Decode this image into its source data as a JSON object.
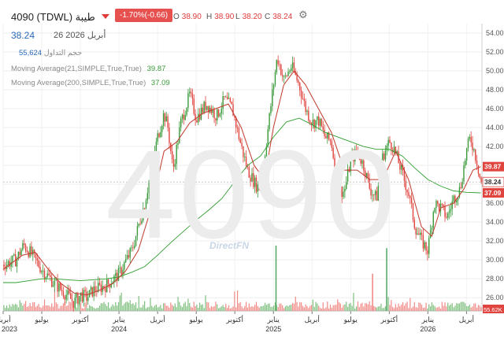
{
  "header": {
    "symbol": "4090",
    "exchange": "(TDWL)",
    "name": "طيبة",
    "change": "-1.70%(-0.66)",
    "open_label": "O",
    "open": "38.90",
    "high_label": "H",
    "high": "38.90",
    "low_label": "L",
    "low": "38.20",
    "close_label": "C",
    "close": "38.24",
    "last_price": "38.24",
    "last_date": "26 أبريل 2026",
    "volume_label": "حجم التداول",
    "volume": "55,624",
    "ma21_label": "Moving Average(21,SIMPLE,True,True)",
    "ma21_value": "39.87",
    "ma200_label": "Moving Average(200,SIMPLE,True,True)",
    "ma200_value": "37.09"
  },
  "watermark": "4090",
  "brand": "DirectFN",
  "colors": {
    "up": "#3a9a3a",
    "down": "#e0443e",
    "ma21": "#c0392b",
    "ma200": "#2e9e2e",
    "price_tag": "#e0443e",
    "ma21_tag": "#e0443e",
    "ma200_tag": "#e0443e",
    "vol_tag": "#e0443e"
  },
  "chart_data": {
    "type": "candlestick",
    "y_axis": {
      "ticks": [
        26,
        28,
        30,
        32,
        34,
        36,
        38,
        40,
        42,
        44,
        46,
        48,
        50,
        52,
        54
      ],
      "ylim": [
        24.6,
        55
      ],
      "side": "right"
    },
    "x_axis": {
      "months": [
        "أبريل",
        "يوليو",
        "أكتوبر",
        "يناير",
        "أبريل",
        "يوليو",
        "أكتوبر",
        "يناير",
        "أبريل",
        "يوليو",
        "أكتوبر",
        "يناير",
        "أبريل"
      ],
      "month_positions": [
        0,
        3,
        6,
        9,
        12,
        15,
        18,
        21,
        24,
        27,
        30,
        33,
        36
      ],
      "years": [
        "2023",
        "2024",
        "2025",
        "2026"
      ],
      "year_positions": [
        0,
        9,
        21,
        33
      ],
      "range_months": [
        0,
        37.2
      ]
    },
    "price_path": [
      [
        0,
        29.5
      ],
      [
        1,
        30.0
      ],
      [
        1.6,
        31.6
      ],
      [
        2.2,
        30.6
      ],
      [
        3,
        29.0
      ],
      [
        4,
        27.5
      ],
      [
        5,
        26.2
      ],
      [
        5.5,
        25.5
      ],
      [
        6,
        26.3
      ],
      [
        6.5,
        26.0
      ],
      [
        7,
        26.8
      ],
      [
        8,
        27.3
      ],
      [
        9,
        28.5
      ],
      [
        9.5,
        29.8
      ],
      [
        10,
        31.0
      ],
      [
        11,
        36.0
      ],
      [
        11.5,
        39.5
      ],
      [
        12,
        43.0
      ],
      [
        12.5,
        45.5
      ],
      [
        12.8,
        44.0
      ],
      [
        13.2,
        39.5
      ],
      [
        13.8,
        44.5
      ],
      [
        14.5,
        47.5
      ],
      [
        15,
        45.0
      ],
      [
        15.8,
        46.5
      ],
      [
        16.6,
        45.2
      ],
      [
        17.2,
        47.0
      ],
      [
        17.8,
        46.0
      ],
      [
        18.5,
        42.0
      ],
      [
        19,
        39.5
      ],
      [
        19.6,
        38.0
      ],
      [
        20,
        37.5
      ],
      [
        20.5,
        43.0
      ],
      [
        20.9,
        47.5
      ],
      [
        21.3,
        51.5
      ],
      [
        21.8,
        49.0
      ],
      [
        22.4,
        50.5
      ],
      [
        23,
        48.5
      ],
      [
        23.5,
        46.0
      ],
      [
        24,
        44.5
      ],
      [
        24.5,
        44.8
      ],
      [
        25,
        43.0
      ],
      [
        25.5,
        42.5
      ],
      [
        26,
        37.5
      ],
      [
        26.5,
        37.2
      ],
      [
        27,
        40.5
      ],
      [
        27.5,
        41.5
      ],
      [
        28,
        40.0
      ],
      [
        28.5,
        37.5
      ],
      [
        29,
        36.5
      ],
      [
        29.5,
        41.0
      ],
      [
        30,
        42.5
      ],
      [
        30.3,
        42.0
      ],
      [
        30.8,
        40.0
      ],
      [
        31.5,
        37.0
      ],
      [
        32,
        33.5
      ],
      [
        32.5,
        32.0
      ],
      [
        33,
        31.0
      ],
      [
        33.5,
        36.0
      ],
      [
        34,
        35.5
      ],
      [
        34.5,
        34.5
      ],
      [
        35,
        36.5
      ],
      [
        35.5,
        37.5
      ],
      [
        36,
        41.5
      ],
      [
        36.3,
        43.0
      ],
      [
        36.8,
        40.5
      ],
      [
        37.1,
        38.24
      ]
    ],
    "ma21_path": [
      [
        0,
        29.0
      ],
      [
        1.5,
        30.5
      ],
      [
        2.5,
        30.8
      ],
      [
        3.5,
        29.0
      ],
      [
        4.5,
        27.5
      ],
      [
        5.5,
        26.5
      ],
      [
        6.5,
        26.3
      ],
      [
        7.5,
        26.8
      ],
      [
        8.5,
        27.5
      ],
      [
        9.5,
        28.8
      ],
      [
        10.5,
        31.0
      ],
      [
        11.5,
        35.5
      ],
      [
        12.5,
        41.5
      ],
      [
        13.5,
        42.5
      ],
      [
        14.5,
        44.5
      ],
      [
        15.5,
        45.5
      ],
      [
        16.5,
        46.0
      ],
      [
        17.5,
        46.5
      ],
      [
        18.5,
        44.0
      ],
      [
        19.5,
        40.0
      ],
      [
        20.3,
        38.5
      ],
      [
        21,
        44.0
      ],
      [
        21.8,
        48.5
      ],
      [
        22.6,
        50.0
      ],
      [
        23.5,
        48.5
      ],
      [
        24.5,
        46.0
      ],
      [
        25.5,
        43.5
      ],
      [
        26.5,
        39.5
      ],
      [
        27.5,
        39.5
      ],
      [
        28.5,
        38.5
      ],
      [
        29.5,
        38.5
      ],
      [
        30.5,
        41.5
      ],
      [
        31.5,
        38.5
      ],
      [
        32.5,
        33.5
      ],
      [
        33.3,
        32.5
      ],
      [
        34,
        35.5
      ],
      [
        35,
        36.0
      ],
      [
        35.8,
        37.5
      ],
      [
        36.5,
        39.5
      ],
      [
        37.1,
        39.87
      ]
    ],
    "ma200_path": [
      [
        0,
        27.6
      ],
      [
        1,
        27.6
      ],
      [
        2,
        27.8
      ],
      [
        3,
        28.0
      ],
      [
        4,
        28.0
      ],
      [
        5,
        27.9
      ],
      [
        6,
        27.8
      ],
      [
        7,
        27.9
      ],
      [
        8,
        28.0
      ],
      [
        9,
        28.2
      ],
      [
        10,
        28.7
      ],
      [
        11,
        29.3
      ],
      [
        12,
        30.5
      ],
      [
        13,
        31.8
      ],
      [
        14,
        33.0
      ],
      [
        15,
        34.2
      ],
      [
        16,
        35.3
      ],
      [
        17,
        36.5
      ],
      [
        18,
        38.3
      ],
      [
        19,
        40.0
      ],
      [
        20,
        41.0
      ],
      [
        21,
        43.0
      ],
      [
        22,
        44.6
      ],
      [
        23,
        45.0
      ],
      [
        24,
        44.3
      ],
      [
        25,
        43.5
      ],
      [
        26,
        43.0
      ],
      [
        27,
        42.5
      ],
      [
        28,
        42.0
      ],
      [
        29,
        41.7
      ],
      [
        30,
        41.7
      ],
      [
        31,
        41.0
      ],
      [
        32,
        39.7
      ],
      [
        33,
        38.5
      ],
      [
        34,
        37.8
      ],
      [
        35,
        37.3
      ],
      [
        36,
        37.15
      ],
      [
        37.1,
        37.09
      ]
    ],
    "volume_spikes": [
      {
        "x": 21.2,
        "height": 1.0
      },
      {
        "x": 29.8,
        "height": 0.96
      },
      {
        "x": 28.7,
        "height": 0.57
      }
    ],
    "price_tags": [
      {
        "value": 39.87,
        "label": "39.87"
      },
      {
        "value": 38.24,
        "label": "38.24"
      },
      {
        "value": 37.09,
        "label": "37.09"
      }
    ],
    "volume_tag": "55.62K",
    "last_price_line": 38.24
  }
}
